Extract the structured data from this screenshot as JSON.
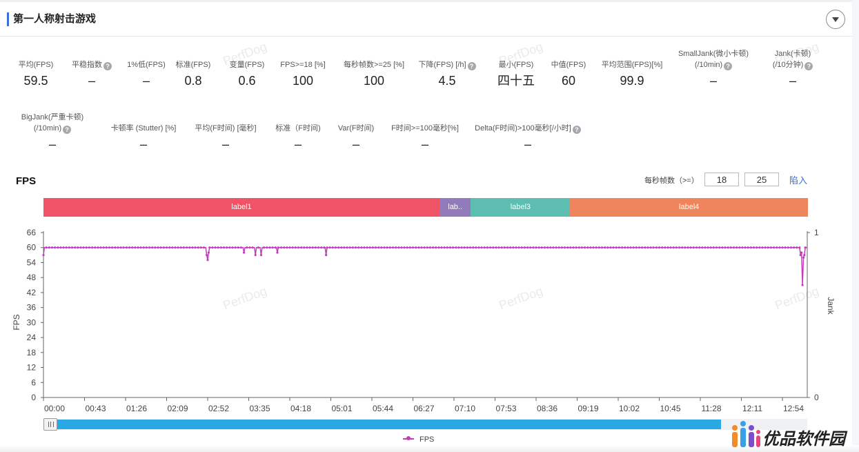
{
  "header": {
    "title": "第一人称射击游戏"
  },
  "metrics_row1": [
    {
      "label": "平均(FPS)",
      "value": "59.5",
      "help": false
    },
    {
      "label": "平稳指数",
      "value": "–",
      "help": true
    },
    {
      "label": "1%低(FPS)",
      "value": "–",
      "help": false
    },
    {
      "label": "标准(FPS)",
      "value": "0.8",
      "help": false
    },
    {
      "label": "变量(FPS)",
      "value": "0.6",
      "help": false
    },
    {
      "label": "FPS>=18 [%]",
      "value": "100",
      "help": false
    },
    {
      "label": "每秒帧数>=25 [%]",
      "value": "100",
      "help": false
    },
    {
      "label": "下降(FPS) [/h]",
      "value": "4.5",
      "help": true
    },
    {
      "label": "最小(FPS)",
      "value": "四十五",
      "help": false
    },
    {
      "label": "中值(FPS)",
      "value": "60",
      "help": false
    },
    {
      "label": "平均范围(FPS)[%]",
      "value": "99.9",
      "help": false
    },
    {
      "label": "SmallJank(微小卡顿)",
      "label2": "(/10min)",
      "value": "–",
      "help": true
    },
    {
      "label": "Jank(卡顿)",
      "label2": "(/10分钟)",
      "value": "–",
      "help": true
    }
  ],
  "metrics_row2": [
    {
      "label": "BigJank(严重卡顿)",
      "label2": "(/10min)",
      "value": "–",
      "help": true
    },
    {
      "label": "卡顿率 (Stutter) [%]",
      "value": "–",
      "help": false
    },
    {
      "label": "平均(F时间) [毫秒]",
      "value": "–",
      "help": false
    },
    {
      "label": "标准（F时间)",
      "value": "–",
      "help": false
    },
    {
      "label": "Var(F时间)",
      "value": "–",
      "help": false
    },
    {
      "label": "F时间>=100毫秒[%]",
      "value": "–",
      "help": false
    },
    {
      "label": "Delta(F时间)>100毫秒[/小时]",
      "value": "–",
      "help": true
    }
  ],
  "fps_section": {
    "title": "FPS",
    "threshold_label": "每秒帧数（>=）",
    "threshold1": "18",
    "threshold2": "25",
    "apply_label": "陷入"
  },
  "label_segments": [
    {
      "name": "label1",
      "color": "#ee5465",
      "start": 0,
      "end": 0.518
    },
    {
      "name": "lab..",
      "color": "#917bba",
      "start": 0.518,
      "end": 0.559
    },
    {
      "name": "label3",
      "color": "#5dbdb1",
      "start": 0.559,
      "end": 0.689
    },
    {
      "name": "label4",
      "color": "#ef855d",
      "start": 0.689,
      "end": 1.0
    }
  ],
  "watermark": "PerfDog",
  "chart_data": {
    "type": "line",
    "title": "",
    "xlabel": "",
    "ylabel": "FPS",
    "y2label": "Jank",
    "ylim": [
      0,
      66
    ],
    "yticks": [
      "66",
      "60",
      "54",
      "48",
      "42",
      "36",
      "30",
      "24",
      "18",
      "12",
      "6",
      "0"
    ],
    "y2ticks": [
      "1",
      "0"
    ],
    "xticks": [
      "00:00",
      "00:43",
      "01:26",
      "02:09",
      "02:52",
      "03:35",
      "04:18",
      "05:01",
      "05:44",
      "06:27",
      "07:10",
      "07:53",
      "08:36",
      "09:19",
      "10:02",
      "10:45",
      "11:28",
      "12:11",
      "12:54"
    ],
    "duration_s": 800,
    "grid": false,
    "legend": "bottom",
    "series": [
      {
        "name": "FPS",
        "color": "#c33dbd",
        "baseline": 60,
        "dips": [
          {
            "t": 0,
            "v": 57
          },
          {
            "t": 171,
            "v": 57
          },
          {
            "t": 172,
            "v": 55
          },
          {
            "t": 173,
            "v": 58
          },
          {
            "t": 210,
            "v": 58
          },
          {
            "t": 222,
            "v": 57
          },
          {
            "t": 228,
            "v": 57
          },
          {
            "t": 245,
            "v": 58
          },
          {
            "t": 296,
            "v": 57
          },
          {
            "t": 793,
            "v": 57
          },
          {
            "t": 794,
            "v": 58
          },
          {
            "t": 795,
            "v": 45
          },
          {
            "t": 796,
            "v": 56
          },
          {
            "t": 797,
            "v": 57
          }
        ]
      }
    ]
  },
  "scrollbar": {
    "visible_fraction": 0.887
  },
  "legend_label": "FPS",
  "brand": {
    "logo_text": "优品软件园"
  }
}
